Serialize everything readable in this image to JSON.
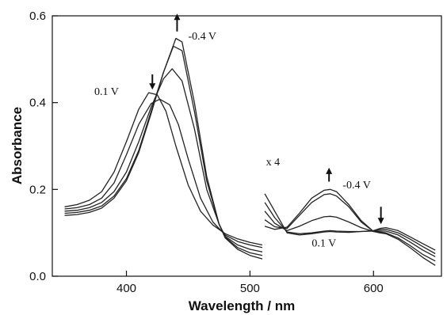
{
  "chart_data": {
    "type": "line",
    "xlabel": "Wavelength / nm",
    "ylabel": "Absorbance",
    "xlim": [
      340,
      655
    ],
    "ylim": [
      0.0,
      0.6
    ],
    "grid": false,
    "xticks": [
      400,
      500,
      600
    ],
    "xtick_labels": [
      "400",
      "500",
      "600"
    ],
    "yticks": [
      0.0,
      0.2,
      0.4,
      0.6
    ],
    "ytick_labels": [
      "0.0",
      "0.2",
      "0.4",
      "0.6"
    ],
    "scale_note": "x 4",
    "series": [
      {
        "segments": [
          {
            "x": [
              350,
              360,
              370,
              380,
              390,
              400,
              410,
              418,
              425,
              432,
              440,
              450,
              460,
              470,
              480,
              490,
              500,
              510
            ],
            "y": [
              0.16,
              0.165,
              0.175,
              0.195,
              0.24,
              0.31,
              0.385,
              0.423,
              0.418,
              0.38,
              0.3,
              0.21,
              0.15,
              0.118,
              0.098,
              0.086,
              0.078,
              0.072
            ]
          },
          {
            "x": [
              512,
              520,
              530,
              540,
              550,
              560,
              565,
              570,
              580,
              590,
              600,
              605,
              610,
              620,
              630,
              640,
              650
            ],
            "y": [
              0.19,
              0.15,
              0.1,
              0.095,
              0.098,
              0.102,
              0.103,
              0.102,
              0.101,
              0.103,
              0.105,
              0.11,
              0.112,
              0.105,
              0.09,
              0.075,
              0.06
            ]
          }
        ]
      },
      {
        "segments": [
          {
            "x": [
              350,
              360,
              370,
              380,
              390,
              400,
              410,
              420,
              427,
              435,
              442,
              450,
              460,
              470,
              480,
              490,
              500,
              510
            ],
            "y": [
              0.155,
              0.158,
              0.165,
              0.18,
              0.215,
              0.28,
              0.35,
              0.398,
              0.408,
              0.395,
              0.35,
              0.27,
              0.18,
              0.125,
              0.095,
              0.08,
              0.072,
              0.066
            ]
          },
          {
            "x": [
              512,
              520,
              530,
              540,
              550,
              560,
              565,
              570,
              580,
              590,
              600,
              605,
              610,
              620,
              630,
              640,
              650
            ],
            "y": [
              0.17,
              0.135,
              0.102,
              0.098,
              0.1,
              0.104,
              0.105,
              0.104,
              0.103,
              0.103,
              0.104,
              0.107,
              0.108,
              0.1,
              0.085,
              0.068,
              0.052
            ]
          }
        ]
      },
      {
        "segments": [
          {
            "x": [
              350,
              360,
              370,
              380,
              390,
              400,
              410,
              420,
              430,
              437,
              445,
              455,
              465,
              475,
              480,
              490,
              500,
              510
            ],
            "y": [
              0.15,
              0.152,
              0.158,
              0.17,
              0.195,
              0.24,
              0.31,
              0.39,
              0.455,
              0.478,
              0.45,
              0.34,
              0.2,
              0.12,
              0.092,
              0.072,
              0.062,
              0.056
            ]
          },
          {
            "x": [
              512,
              520,
              530,
              540,
              550,
              560,
              565,
              570,
              580,
              590,
              600,
              605,
              610,
              620,
              630,
              640,
              650
            ],
            "y": [
              0.15,
              0.122,
              0.105,
              0.115,
              0.128,
              0.137,
              0.138,
              0.136,
              0.125,
              0.112,
              0.103,
              0.104,
              0.104,
              0.095,
              0.078,
              0.06,
              0.045
            ]
          }
        ]
      },
      {
        "segments": [
          {
            "x": [
              350,
              360,
              370,
              380,
              390,
              400,
              410,
              420,
              430,
              438,
              445,
              455,
              465,
              475,
              480,
              490,
              500,
              510
            ],
            "y": [
              0.145,
              0.147,
              0.152,
              0.162,
              0.185,
              0.225,
              0.29,
              0.38,
              0.47,
              0.53,
              0.52,
              0.38,
              0.22,
              0.12,
              0.09,
              0.066,
              0.054,
              0.048
            ]
          },
          {
            "x": [
              512,
              520,
              530,
              540,
              550,
              560,
              565,
              570,
              580,
              590,
              600,
              605,
              610,
              620,
              630,
              640,
              650
            ],
            "y": [
              0.13,
              0.114,
              0.11,
              0.14,
              0.17,
              0.188,
              0.19,
              0.185,
              0.16,
              0.125,
              0.103,
              0.102,
              0.1,
              0.088,
              0.07,
              0.05,
              0.035
            ]
          }
        ]
      },
      {
        "segments": [
          {
            "x": [
              350,
              360,
              370,
              380,
              390,
              400,
              410,
              420,
              430,
              440,
              445,
              455,
              465,
              475,
              480,
              490,
              500,
              510
            ],
            "y": [
              0.14,
              0.142,
              0.147,
              0.157,
              0.18,
              0.22,
              0.285,
              0.375,
              0.47,
              0.548,
              0.54,
              0.4,
              0.23,
              0.12,
              0.088,
              0.062,
              0.048,
              0.04
            ]
          },
          {
            "x": [
              512,
              520,
              530,
              540,
              550,
              560,
              565,
              570,
              580,
              590,
              600,
              605,
              610,
              620,
              630,
              640,
              650
            ],
            "y": [
              0.115,
              0.108,
              0.113,
              0.145,
              0.18,
              0.198,
              0.2,
              0.195,
              0.165,
              0.128,
              0.103,
              0.1,
              0.098,
              0.085,
              0.065,
              0.043,
              0.025
            ]
          }
        ]
      }
    ],
    "annotations": [
      {
        "text": "-0.4 V",
        "x": 450,
        "y": 0.545
      },
      {
        "text": "0.1 V",
        "x": 374,
        "y": 0.418
      },
      {
        "text": "x 4",
        "x": 513,
        "y": 0.255
      },
      {
        "text": "-0.4 V",
        "x": 575,
        "y": 0.202
      },
      {
        "text": "0.1 V",
        "x": 550,
        "y": 0.068
      }
    ],
    "arrows": [
      {
        "x": 441,
        "y_tail": 0.564,
        "y_head": 0.605,
        "direction": "up"
      },
      {
        "x": 421,
        "y_tail": 0.465,
        "y_head": 0.43,
        "direction": "down"
      },
      {
        "x": 564,
        "y_tail": 0.218,
        "y_head": 0.25,
        "direction": "up"
      },
      {
        "x": 606,
        "y_tail": 0.16,
        "y_head": 0.12,
        "direction": "down"
      }
    ]
  }
}
